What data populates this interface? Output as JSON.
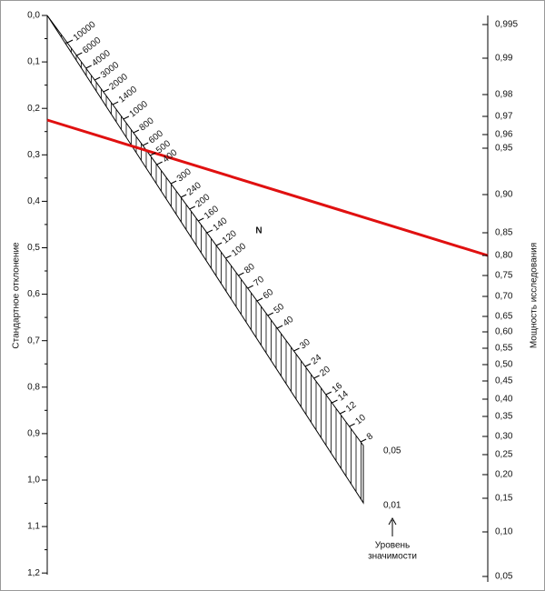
{
  "left_axis": {
    "title": "Стандартное отклонение",
    "labels": [
      "0,0",
      "0,1",
      "0,2",
      "0,3",
      "0,4",
      "0,5",
      "0,6",
      "0,7",
      "0,8",
      "0,9",
      "1,0",
      "1,1",
      "1,2"
    ]
  },
  "right_axis": {
    "title": "Мощность исследования",
    "labels": [
      "0,995",
      "0,99",
      "0,98",
      "0,97",
      "0,96",
      "0,95",
      "0,90",
      "0,85",
      "0,80",
      "0,75",
      "0,70",
      "0,65",
      "0,60",
      "0,55",
      "0,50",
      "0,45",
      "0,40",
      "0,35",
      "0,30",
      "0,25",
      "0,20",
      "0,15",
      "0,10",
      "0,05"
    ]
  },
  "n_scale": {
    "title": "N",
    "labels": [
      "10000",
      "6000",
      "4000",
      "3000",
      "2000",
      "1400",
      "1000",
      "800",
      "600",
      "500",
      "400",
      "300",
      "240",
      "200",
      "160",
      "140",
      "120",
      "100",
      "80",
      "70",
      "60",
      "50",
      "40",
      "30",
      "24",
      "20",
      "16",
      "14",
      "12",
      "10",
      "8"
    ]
  },
  "significance": {
    "title_lines": [
      "Уровень",
      "значимости"
    ],
    "levels": [
      "0,05",
      "0,01"
    ]
  }
}
